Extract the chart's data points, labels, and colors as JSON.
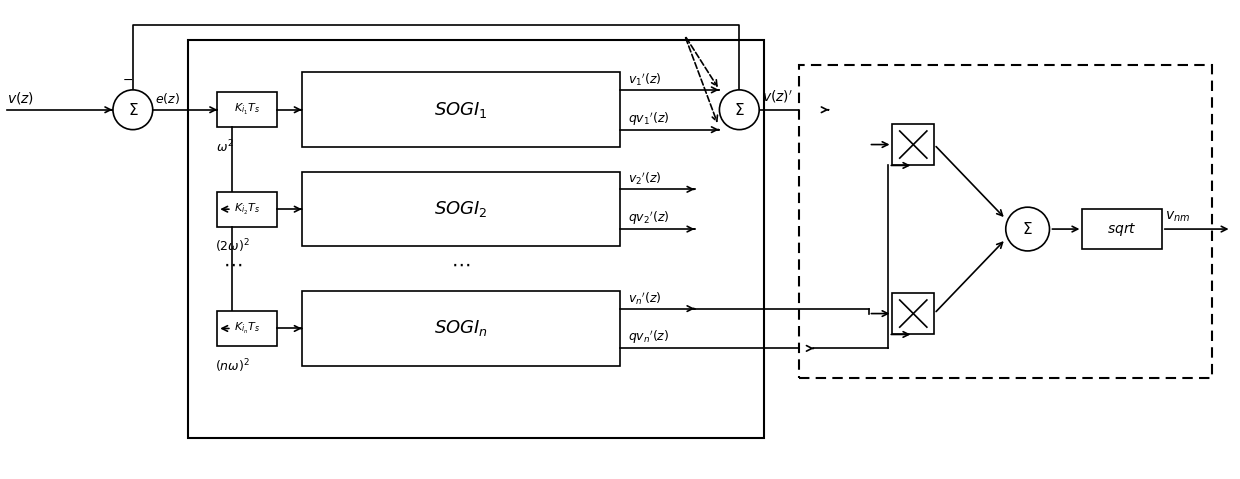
{
  "bg": "#ffffff",
  "lc": "#000000",
  "fw": 12.4,
  "fh": 4.79,
  "dpi": 100
}
